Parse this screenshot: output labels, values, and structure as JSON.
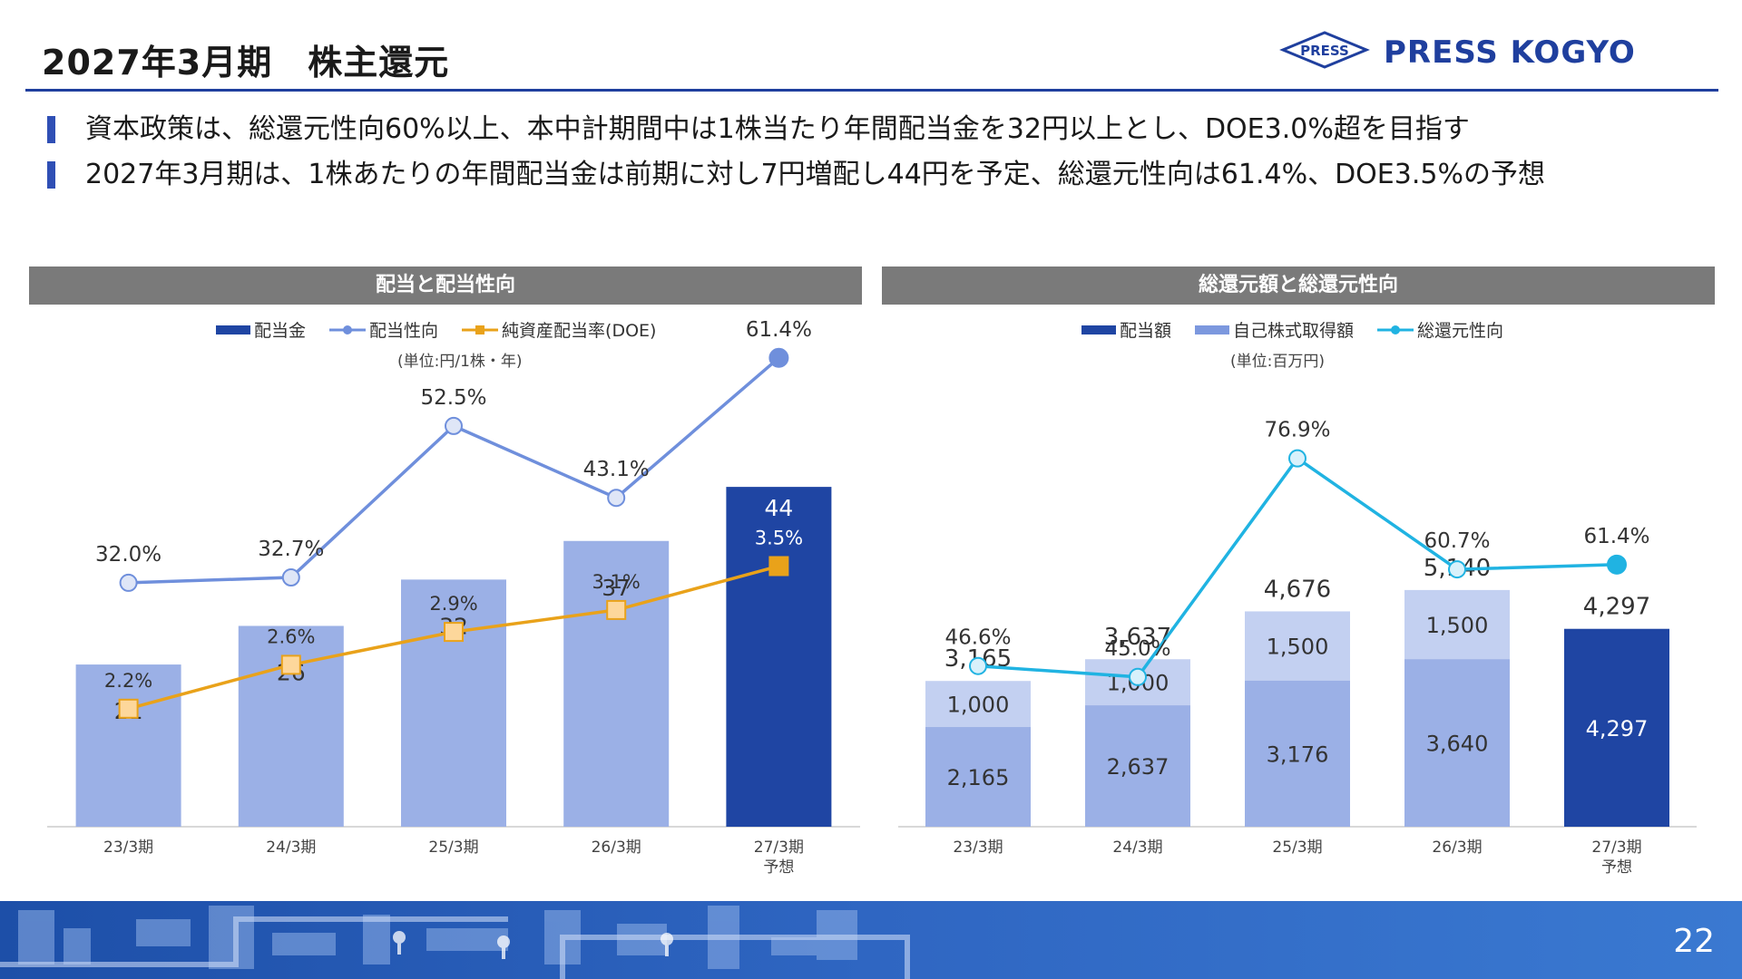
{
  "header": {
    "title": "2027年3月期　株主還元",
    "logo_mark_text": "PRESS",
    "logo_text": "PRESS KOGYO"
  },
  "bullets": [
    "資本政策は、総還元性向60%以上、本中計期間中は1株当たり年間配当金を32円以上とし、DOE3.0%超を目指す",
    "2027年3月期は、1株あたりの年間配当金は前期に対し7円増配し44円を予定、総還元性向は61.4%、DOE3.5%の予想"
  ],
  "left_panel": {
    "heading": "配当と配当性向",
    "legend": [
      "配当金",
      "配当性向",
      "純資産配当率(DOE)"
    ],
    "unit": "(単位:円/1株・年)"
  },
  "right_panel": {
    "heading": "総還元額と総還元性向",
    "legend": [
      "配当額",
      "自己株式取得額",
      "総還元性向"
    ],
    "unit": "(単位:百万円)"
  },
  "colors": {
    "brand": "#1f3f9e",
    "bar_light": "#9bb0e6",
    "bar_lighter": "#c3d0f1",
    "bar_dark": "#1f45a3",
    "payout_line": "#6f8fdc",
    "doe_line": "#e9a21a",
    "doe_marker_fill": "#fdd79b",
    "total_line": "#20b3e2",
    "total_marker_fill": "#d8f1fb"
  },
  "chart_data": [
    {
      "type": "bar",
      "title": "配当と配当性向",
      "categories": [
        "23/3期",
        "24/3期",
        "25/3期",
        "26/3期",
        "27/3期\n予想"
      ],
      "series": [
        {
          "name": "配当金",
          "kind": "bar",
          "values": [
            21,
            26,
            32,
            37,
            44
          ],
          "labels": [
            "21",
            "26",
            "32",
            "37",
            "44"
          ]
        },
        {
          "name": "配当性向",
          "kind": "line",
          "values": [
            32.0,
            32.7,
            52.5,
            43.1,
            61.4
          ],
          "labels": [
            "32.0%",
            "32.7%",
            "52.5%",
            "43.1%",
            "61.4%"
          ]
        },
        {
          "name": "純資産配当率(DOE)",
          "kind": "line",
          "values": [
            2.2,
            2.6,
            2.9,
            3.1,
            3.5
          ],
          "labels": [
            "2.2%",
            "2.6%",
            "2.9%",
            "3.1%",
            "3.5%"
          ]
        }
      ],
      "forecast_index": 4
    },
    {
      "type": "bar",
      "stacked": true,
      "title": "総還元額と総還元性向",
      "categories": [
        "23/3期",
        "24/3期",
        "25/3期",
        "26/3期",
        "27/3期\n予想"
      ],
      "series": [
        {
          "name": "配当額",
          "kind": "bar",
          "values": [
            2165,
            2637,
            3176,
            3640,
            4297
          ],
          "labels": [
            "2,165",
            "2,637",
            "3,176",
            "3,640",
            "4,297"
          ]
        },
        {
          "name": "自己株式取得額",
          "kind": "bar",
          "values": [
            1000,
            1000,
            1500,
            1500,
            0
          ],
          "labels": [
            "1,000",
            "1,000",
            "1,500",
            "1,500",
            ""
          ]
        },
        {
          "name": "総還元性向",
          "kind": "line",
          "values": [
            46.6,
            45.0,
            76.9,
            60.7,
            61.4
          ],
          "labels": [
            "46.6%",
            "45.0%",
            "76.9%",
            "60.7%",
            "61.4%"
          ]
        }
      ],
      "totals": [
        "3,165",
        "3,637",
        "4,676",
        "5,140",
        "4,297"
      ],
      "forecast_index": 4
    }
  ],
  "footer": {
    "page_number": "22"
  }
}
